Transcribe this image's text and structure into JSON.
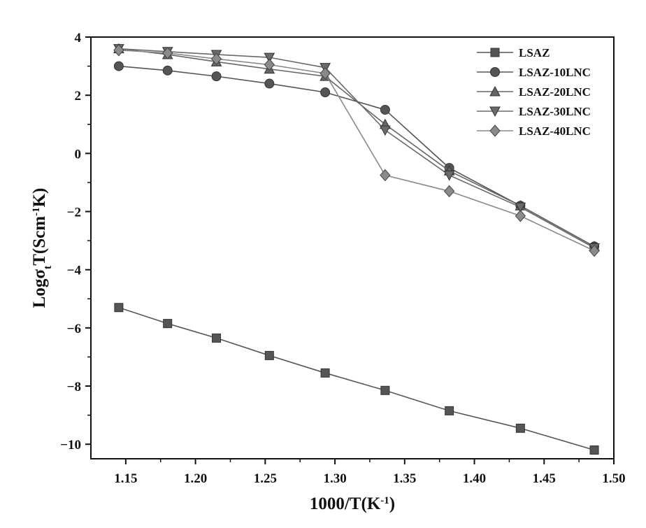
{
  "chart_data": {
    "type": "line",
    "title": "",
    "xlabel": "1000/T(K",
    "xlabel_sup": "-1",
    "xlabel_end": ")",
    "ylabel_main": "Logσ",
    "ylabel_sub": "t",
    "ylabel_mid": "T(Scm",
    "ylabel_sup": "-1",
    "ylabel_end": "K)",
    "xlim": [
      1.125,
      1.5
    ],
    "ylim": [
      -10.5,
      4
    ],
    "xticks": [
      1.15,
      1.2,
      1.25,
      1.3,
      1.35,
      1.4,
      1.45,
      1.5
    ],
    "xtick_labels": [
      "1.15",
      "1.20",
      "1.25",
      "1.30",
      "1.35",
      "1.40",
      "1.45",
      "1.50"
    ],
    "yticks": [
      4,
      2,
      0,
      -2,
      -4,
      -6,
      -8,
      -10
    ],
    "ytick_labels": [
      "4",
      "2",
      "0",
      "−2",
      "−4",
      "−6",
      "−8",
      "−10"
    ],
    "x": [
      1.145,
      1.18,
      1.215,
      1.253,
      1.293,
      1.336,
      1.382,
      1.433,
      1.486
    ],
    "legend_position": "top-right",
    "series": [
      {
        "name": "LSAZ",
        "marker": "square",
        "color": "#555555",
        "values": [
          -5.3,
          -5.85,
          -6.35,
          -6.95,
          -7.55,
          -8.15,
          -8.85,
          -9.45,
          -10.2
        ]
      },
      {
        "name": "LSAZ-10LNC",
        "marker": "circle",
        "color": "#555555",
        "values": [
          3.0,
          2.85,
          2.65,
          2.4,
          2.1,
          1.5,
          -0.5,
          -1.8,
          -3.2
        ]
      },
      {
        "name": "LSAZ-20LNC",
        "marker": "triangle-up",
        "color": "#666666",
        "values": [
          3.6,
          3.4,
          3.15,
          2.9,
          2.65,
          1.0,
          -0.6,
          -1.8,
          -3.2
        ]
      },
      {
        "name": "LSAZ-30LNC",
        "marker": "triangle-down",
        "color": "#6a6a6a",
        "values": [
          3.6,
          3.5,
          3.4,
          3.3,
          2.95,
          0.8,
          -0.75,
          -1.85,
          -3.25
        ]
      },
      {
        "name": "LSAZ-40LNC",
        "marker": "diamond",
        "color": "#8a8a8a",
        "values": [
          3.55,
          3.45,
          3.25,
          3.05,
          2.75,
          -0.75,
          -1.3,
          -2.15,
          -3.35
        ]
      }
    ]
  }
}
